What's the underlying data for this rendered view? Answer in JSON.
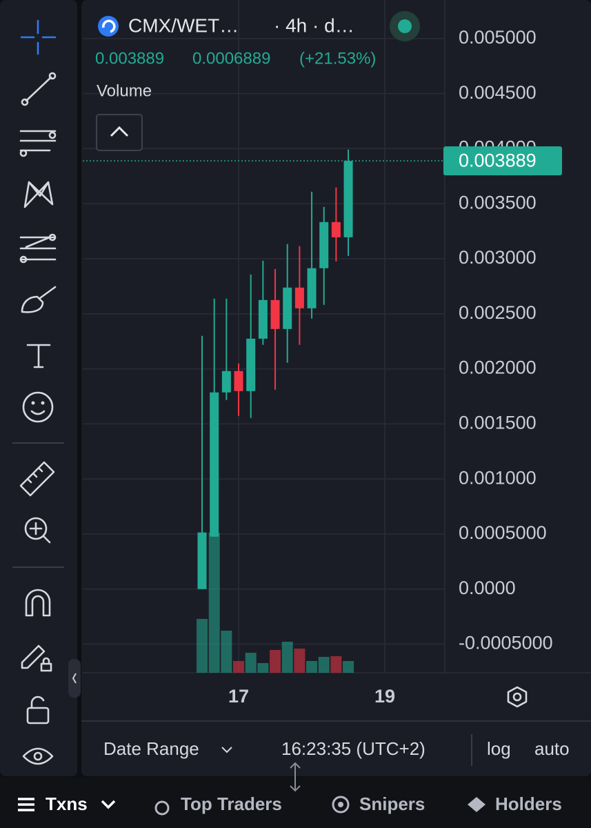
{
  "header": {
    "pair": "CMX/WET…",
    "interval": "· 4h · d…",
    "price": "0.003889",
    "change": "0.0006889",
    "change_pct": "(+21.53%)",
    "volume_label": "Volume"
  },
  "chart_data": {
    "type": "candlestick",
    "x": [
      16.5,
      16.6667,
      16.8333,
      17,
      17.1667,
      17.3333,
      17.5,
      17.6667,
      17.8333,
      18,
      18.1667,
      18.3333,
      18.5
    ],
    "open": [
      0,
      0.000476,
      0.001786,
      0.00198,
      0.001798,
      0.002274,
      0.002625,
      0.002362,
      0.002738,
      0.00255,
      0.002914,
      0.003333,
      0.003195
    ],
    "high": [
      0.0023,
      0.002638,
      0.002638,
      0.002049,
      0.002857,
      0.002982,
      0.002907,
      0.003133,
      0.003114,
      0.003609,
      0.003471,
      0.003647,
      0.003991
    ],
    "low": [
      0,
      0.000476,
      0.001717,
      0.001573,
      0.001554,
      0.002218,
      0.001811,
      0.002055,
      0.002218,
      0.002456,
      0.002581,
      0.002976,
      0.003026
    ],
    "close": [
      0.000514,
      0.001786,
      0.00198,
      0.001798,
      0.002274,
      0.002625,
      0.002362,
      0.002738,
      0.00255,
      0.002914,
      0.003333,
      0.003195,
      0.003889
    ],
    "volume": [
      78,
      203,
      61,
      17,
      29,
      14,
      33,
      45,
      35,
      17,
      23,
      24,
      17
    ],
    "up_color": "#22ab94",
    "down_color": "#f23645",
    "last_price": {
      "value": 0.003889,
      "label": "0.003889"
    },
    "xlim": [
      14.868,
      19.82
    ],
    "xticks": [
      17,
      19
    ],
    "ylim": [
      -0.00076,
      0.00535
    ],
    "yticks": [
      {
        "value": 0.005,
        "label": "0.005000"
      },
      {
        "value": 0.0045,
        "label": "0.004500"
      },
      {
        "value": 0.004,
        "label": "0.004000"
      },
      {
        "value": 0.0035,
        "label": "0.003500"
      },
      {
        "value": 0.003,
        "label": "0.003000"
      },
      {
        "value": 0.0025,
        "label": "0.002500"
      },
      {
        "value": 0.002,
        "label": "0.002000"
      },
      {
        "value": 0.0015,
        "label": "0.001500"
      },
      {
        "value": 0.001,
        "label": "0.001000"
      },
      {
        "value": 0.0005,
        "label": "0.0005000"
      },
      {
        "value": 0,
        "label": "0.0000"
      },
      {
        "value": -0.0005,
        "label": "-0.0005000"
      }
    ],
    "grid": true
  },
  "controls": {
    "date_range": "Date Range",
    "time": "16:23:35 (UTC+2)",
    "log": "log",
    "auto": "auto"
  },
  "tabs": [
    "Txns",
    "Top Traders",
    "Snipers",
    "Holders"
  ]
}
